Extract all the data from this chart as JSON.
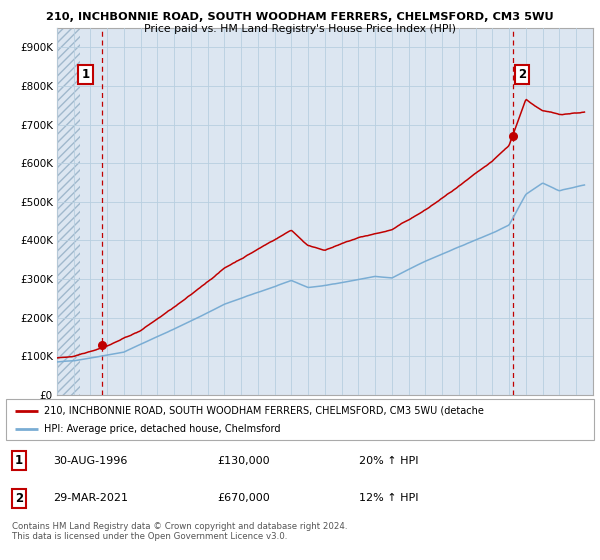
{
  "title_line1": "210, INCHBONNIE ROAD, SOUTH WOODHAM FERRERS, CHELMSFORD, CM3 5WU",
  "title_line2": "Price paid vs. HM Land Registry's House Price Index (HPI)",
  "ylim": [
    0,
    950000
  ],
  "yticks": [
    0,
    100000,
    200000,
    300000,
    400000,
    500000,
    600000,
    700000,
    800000,
    900000
  ],
  "ytick_labels": [
    "£0",
    "£100K",
    "£200K",
    "£300K",
    "£400K",
    "£500K",
    "£600K",
    "£700K",
    "£800K",
    "£900K"
  ],
  "hpi_color": "#7aadd4",
  "price_color": "#c00000",
  "annotation_box_color": "#c00000",
  "bg_color": "#dce6f1",
  "sale1_x": 1996.66,
  "sale1_y": 130000,
  "sale1_label": "1",
  "sale2_x": 2021.24,
  "sale2_y": 670000,
  "sale2_label": "2",
  "legend_line1": "210, INCHBONNIE ROAD, SOUTH WOODHAM FERRERS, CHELMSFORD, CM3 5WU (detache",
  "legend_line2": "HPI: Average price, detached house, Chelmsford",
  "table_row1_num": "1",
  "table_row1_date": "30-AUG-1996",
  "table_row1_price": "£130,000",
  "table_row1_hpi": "20% ↑ HPI",
  "table_row2_num": "2",
  "table_row2_date": "29-MAR-2021",
  "table_row2_price": "£670,000",
  "table_row2_hpi": "12% ↑ HPI",
  "footer": "Contains HM Land Registry data © Crown copyright and database right 2024.\nThis data is licensed under the Open Government Licence v3.0.",
  "grid_color": "#b8cfe0",
  "vline_color": "#c00000",
  "xlim_start": 1994,
  "xlim_end": 2026
}
